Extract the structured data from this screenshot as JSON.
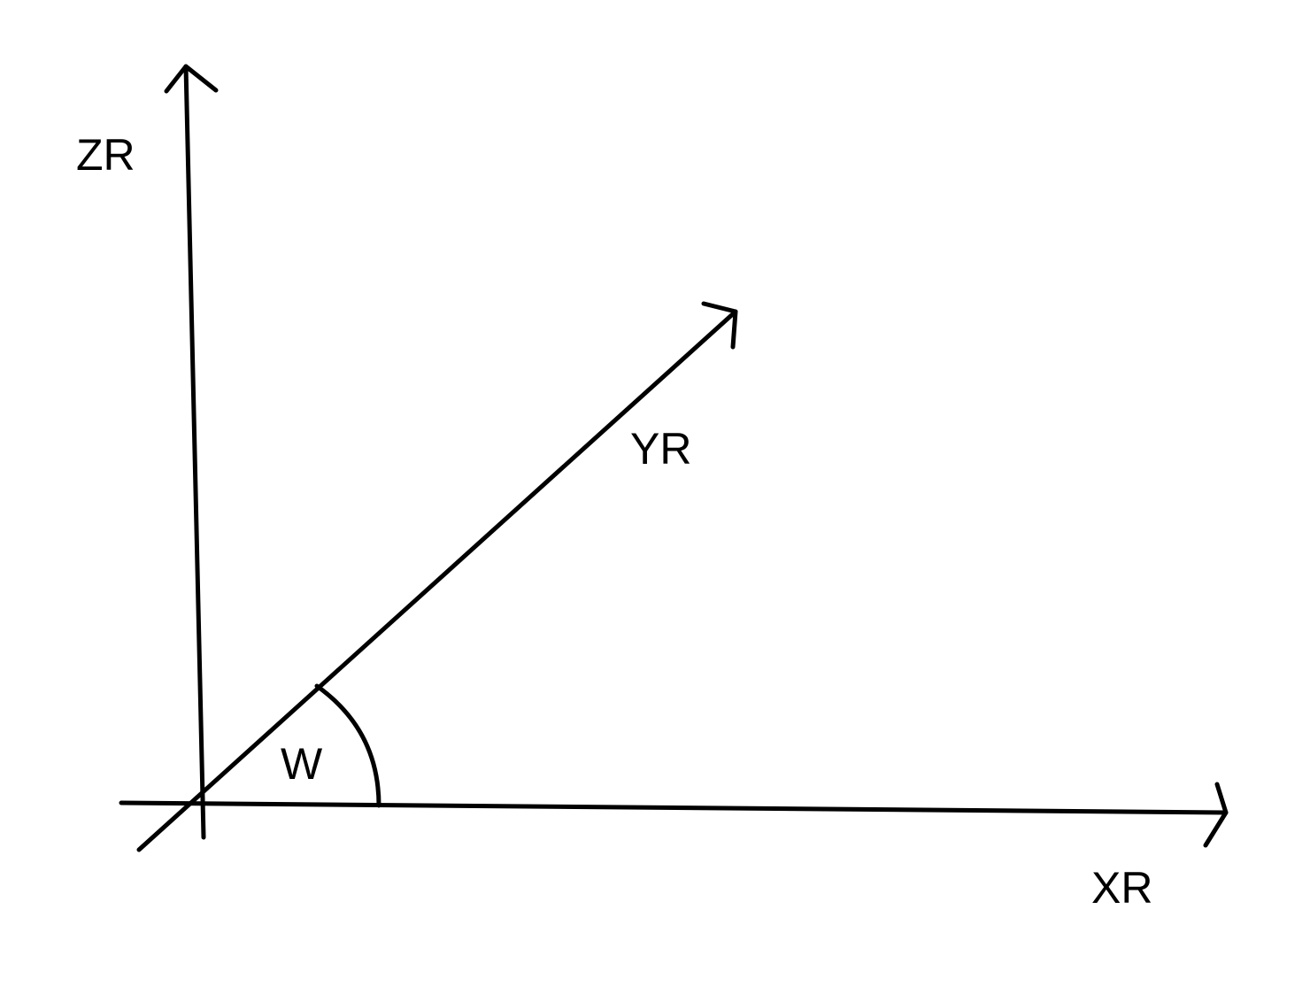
{
  "colors": {
    "background": "#ffffff",
    "ink": "#000000"
  },
  "labels": {
    "z_axis": "ZR",
    "y_axis": "YR",
    "x_axis": "XR",
    "angle": "W"
  }
}
